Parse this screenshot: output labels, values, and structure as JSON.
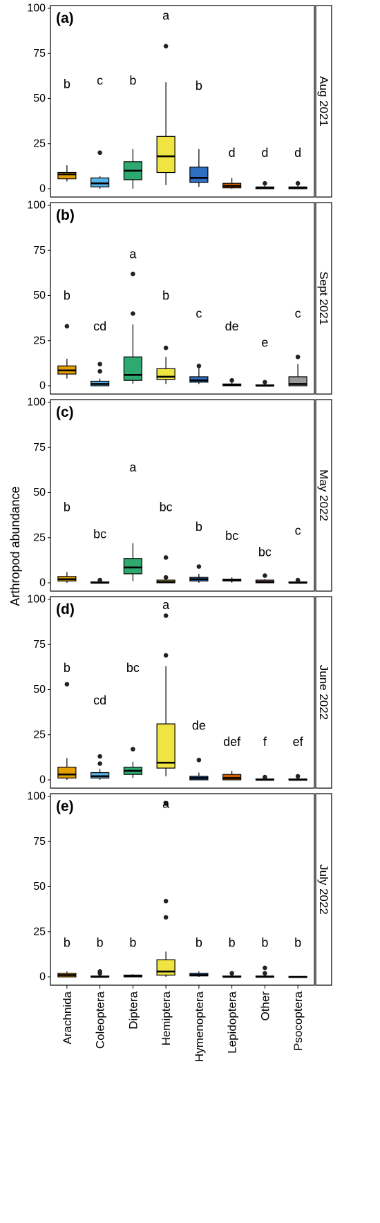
{
  "chart_data": {
    "type": "box",
    "ylabel": "Arthropod abundance",
    "ylim": [
      0,
      100
    ],
    "yticks": [
      0,
      25,
      50,
      75,
      100
    ],
    "categories": [
      "Arachnida",
      "Coleoptera",
      "Diptera",
      "Hemiptera",
      "Hymenoptera",
      "Lepidoptera",
      "Other",
      "Psocoptera"
    ],
    "colors": [
      "#E69F00",
      "#56B4E9",
      "#2EAA70",
      "#F0E442",
      "#2F6FC2",
      "#D55E00",
      "#CC79A7",
      "#999999"
    ],
    "panels": [
      {
        "label": "(a)",
        "strip": "Aug 2021",
        "letters": [
          {
            "category": "Arachnida",
            "text": "b",
            "y": 58
          },
          {
            "category": "Coleoptera",
            "text": "c",
            "y": 60
          },
          {
            "category": "Diptera",
            "text": "b",
            "y": 60
          },
          {
            "category": "Hemiptera",
            "text": "a",
            "y": 96
          },
          {
            "category": "Hymenoptera",
            "text": "b",
            "y": 57
          },
          {
            "category": "Lepidoptera",
            "text": "d",
            "y": 20
          },
          {
            "category": "Other",
            "text": "d",
            "y": 20
          },
          {
            "category": "Psocoptera",
            "text": "d",
            "y": 20
          }
        ],
        "boxes": [
          {
            "category": "Arachnida",
            "min": 4,
            "q1": 5.5,
            "median": 8,
            "q3": 9,
            "max": 13,
            "outliers": []
          },
          {
            "category": "Coleoptera",
            "min": 0,
            "q1": 1,
            "median": 3,
            "q3": 6,
            "max": 7,
            "outliers": [
              20
            ]
          },
          {
            "category": "Diptera",
            "min": 0,
            "q1": 5,
            "median": 10,
            "q3": 15,
            "max": 22,
            "outliers": []
          },
          {
            "category": "Hemiptera",
            "min": 2,
            "q1": 9,
            "median": 18,
            "q3": 29,
            "max": 59,
            "outliers": [
              79
            ]
          },
          {
            "category": "Hymenoptera",
            "min": 1,
            "q1": 3.5,
            "median": 6,
            "q3": 12,
            "max": 22,
            "outliers": []
          },
          {
            "category": "Lepidoptera",
            "min": 0,
            "q1": 0.5,
            "median": 1.5,
            "q3": 3,
            "max": 6,
            "outliers": []
          },
          {
            "category": "Other",
            "min": 0,
            "q1": 0,
            "median": 0.5,
            "q3": 1,
            "max": 2,
            "outliers": [
              3
            ]
          },
          {
            "category": "Psocoptera",
            "min": 0,
            "q1": 0,
            "median": 0.5,
            "q3": 1,
            "max": 2,
            "outliers": [
              3
            ]
          }
        ]
      },
      {
        "label": "(b)",
        "strip": "Sept 2021",
        "letters": [
          {
            "category": "Arachnida",
            "text": "b",
            "y": 50
          },
          {
            "category": "Coleoptera",
            "text": "cd",
            "y": 33
          },
          {
            "category": "Diptera",
            "text": "a",
            "y": 73
          },
          {
            "category": "Hemiptera",
            "text": "b",
            "y": 50
          },
          {
            "category": "Hymenoptera",
            "text": "c",
            "y": 40
          },
          {
            "category": "Lepidoptera",
            "text": "de",
            "y": 33
          },
          {
            "category": "Other",
            "text": "e",
            "y": 24
          },
          {
            "category": "Psocoptera",
            "text": "c",
            "y": 40
          }
        ],
        "boxes": [
          {
            "category": "Arachnida",
            "min": 4,
            "q1": 6.5,
            "median": 8.5,
            "q3": 11,
            "max": 15,
            "outliers": [
              33
            ]
          },
          {
            "category": "Coleoptera",
            "min": 0,
            "q1": 0,
            "median": 1,
            "q3": 2.5,
            "max": 4,
            "outliers": [
              8,
              12
            ]
          },
          {
            "category": "Diptera",
            "min": 1,
            "q1": 3,
            "median": 6,
            "q3": 16,
            "max": 34,
            "outliers": [
              40,
              62
            ]
          },
          {
            "category": "Hemiptera",
            "min": 1,
            "q1": 3.5,
            "median": 5,
            "q3": 9.5,
            "max": 16,
            "outliers": [
              21
            ]
          },
          {
            "category": "Hymenoptera",
            "min": 1,
            "q1": 2,
            "median": 3,
            "q3": 5,
            "max": 10,
            "outliers": [
              11
            ]
          },
          {
            "category": "Lepidoptera",
            "min": 0,
            "q1": 0,
            "median": 0.5,
            "q3": 1,
            "max": 2,
            "outliers": [
              3
            ]
          },
          {
            "category": "Other",
            "min": 0,
            "q1": 0,
            "median": 0,
            "q3": 0.5,
            "max": 1,
            "outliers": [
              2
            ]
          },
          {
            "category": "Psocoptera",
            "min": 0,
            "q1": 0,
            "median": 1,
            "q3": 5,
            "max": 12,
            "outliers": [
              16
            ]
          }
        ]
      },
      {
        "label": "(c)",
        "strip": "May 2022",
        "letters": [
          {
            "category": "Arachnida",
            "text": "b",
            "y": 42
          },
          {
            "category": "Coleoptera",
            "text": "bc",
            "y": 27
          },
          {
            "category": "Diptera",
            "text": "a",
            "y": 64
          },
          {
            "category": "Hemiptera",
            "text": "bc",
            "y": 42
          },
          {
            "category": "Hymenoptera",
            "text": "b",
            "y": 31
          },
          {
            "category": "Lepidoptera",
            "text": "bc",
            "y": 26
          },
          {
            "category": "Other",
            "text": "bc",
            "y": 17
          },
          {
            "category": "Psocoptera",
            "text": "c",
            "y": 29
          }
        ],
        "boxes": [
          {
            "category": "Arachnida",
            "min": 0,
            "q1": 1,
            "median": 2,
            "q3": 3.5,
            "max": 6,
            "outliers": []
          },
          {
            "category": "Coleoptera",
            "min": 0,
            "q1": 0,
            "median": 0,
            "q3": 0.5,
            "max": 1,
            "outliers": [
              1.5
            ]
          },
          {
            "category": "Diptera",
            "min": 1,
            "q1": 5,
            "median": 8.5,
            "q3": 13.5,
            "max": 22,
            "outliers": []
          },
          {
            "category": "Hemiptera",
            "min": 0,
            "q1": 0,
            "median": 0.5,
            "q3": 1.5,
            "max": 2,
            "outliers": [
              3,
              14
            ]
          },
          {
            "category": "Hymenoptera",
            "min": 0,
            "q1": 1,
            "median": 2,
            "q3": 3,
            "max": 5,
            "outliers": [
              9
            ]
          },
          {
            "category": "Lepidoptera",
            "min": 0,
            "q1": 1,
            "median": 1.5,
            "q3": 2,
            "max": 3,
            "outliers": []
          },
          {
            "category": "Other",
            "min": 0,
            "q1": 0,
            "median": 0.5,
            "q3": 1.5,
            "max": 2,
            "outliers": [
              4
            ]
          },
          {
            "category": "Psocoptera",
            "min": 0,
            "q1": 0,
            "median": 0,
            "q3": 0.5,
            "max": 1,
            "outliers": [
              1.5
            ]
          }
        ]
      },
      {
        "label": "(d)",
        "strip": "June 2022",
        "letters": [
          {
            "category": "Arachnida",
            "text": "b",
            "y": 62
          },
          {
            "category": "Coleoptera",
            "text": "cd",
            "y": 44
          },
          {
            "category": "Diptera",
            "text": "bc",
            "y": 62
          },
          {
            "category": "Hemiptera",
            "text": "a",
            "y": 97
          },
          {
            "category": "Hymenoptera",
            "text": "de",
            "y": 30
          },
          {
            "category": "Lepidoptera",
            "text": "def",
            "y": 21
          },
          {
            "category": "Other",
            "text": "f",
            "y": 21
          },
          {
            "category": "Psocoptera",
            "text": "ef",
            "y": 21
          }
        ],
        "boxes": [
          {
            "category": "Arachnida",
            "min": 0,
            "q1": 1,
            "median": 3,
            "q3": 7,
            "max": 12,
            "outliers": [
              53
            ]
          },
          {
            "category": "Coleoptera",
            "min": 0,
            "q1": 1,
            "median": 2,
            "q3": 4,
            "max": 6,
            "outliers": [
              9,
              13
            ]
          },
          {
            "category": "Diptera",
            "min": 1,
            "q1": 3,
            "median": 5,
            "q3": 7,
            "max": 10,
            "outliers": [
              17
            ]
          },
          {
            "category": "Hemiptera",
            "min": 2,
            "q1": 6.5,
            "median": 9.5,
            "q3": 31,
            "max": 63,
            "outliers": [
              69,
              91
            ]
          },
          {
            "category": "Hymenoptera",
            "min": 0,
            "q1": 0,
            "median": 1,
            "q3": 2,
            "max": 4,
            "outliers": [
              11
            ]
          },
          {
            "category": "Lepidoptera",
            "min": 0,
            "q1": 0,
            "median": 1,
            "q3": 3,
            "max": 5,
            "outliers": []
          },
          {
            "category": "Other",
            "min": 0,
            "q1": 0,
            "median": 0,
            "q3": 0.5,
            "max": 1,
            "outliers": [
              1.5
            ]
          },
          {
            "category": "Psocoptera",
            "min": 0,
            "q1": 0,
            "median": 0,
            "q3": 0.5,
            "max": 1,
            "outliers": [
              2
            ]
          }
        ]
      },
      {
        "label": "(e)",
        "strip": "July 2022",
        "letters": [
          {
            "category": "Arachnida",
            "text": "b",
            "y": 19
          },
          {
            "category": "Coleoptera",
            "text": "b",
            "y": 19
          },
          {
            "category": "Diptera",
            "text": "b",
            "y": 19
          },
          {
            "category": "Hemiptera",
            "text": "a",
            "y": 96
          },
          {
            "category": "Hymenoptera",
            "text": "b",
            "y": 19
          },
          {
            "category": "Lepidoptera",
            "text": "b",
            "y": 19
          },
          {
            "category": "Other",
            "text": "b",
            "y": 19
          },
          {
            "category": "Psocoptera",
            "text": "b",
            "y": 19
          }
        ],
        "boxes": [
          {
            "category": "Arachnida",
            "min": 0,
            "q1": 0,
            "median": 1,
            "q3": 2,
            "max": 3,
            "outliers": []
          },
          {
            "category": "Coleoptera",
            "min": 0,
            "q1": 0,
            "median": 0,
            "q3": 0.5,
            "max": 1,
            "outliers": [
              2,
              3
            ]
          },
          {
            "category": "Diptera",
            "min": 0,
            "q1": 0,
            "median": 0.5,
            "q3": 1,
            "max": 1.5,
            "outliers": []
          },
          {
            "category": "Hemiptera",
            "min": 0,
            "q1": 1,
            "median": 3,
            "q3": 9.5,
            "max": 14,
            "outliers": [
              33,
              42,
              96
            ]
          },
          {
            "category": "Hymenoptera",
            "min": 0,
            "q1": 0.5,
            "median": 1,
            "q3": 2,
            "max": 3,
            "outliers": []
          },
          {
            "category": "Lepidoptera",
            "min": 0,
            "q1": 0,
            "median": 0,
            "q3": 0.5,
            "max": 1,
            "outliers": [
              2
            ]
          },
          {
            "category": "Other",
            "min": 0,
            "q1": 0,
            "median": 0,
            "q3": 0.5,
            "max": 1,
            "outliers": [
              2,
              5
            ]
          },
          {
            "category": "Psocoptera",
            "min": 0,
            "q1": 0,
            "median": 0,
            "q3": 0.2,
            "max": 0.5,
            "outliers": []
          }
        ]
      }
    ]
  }
}
